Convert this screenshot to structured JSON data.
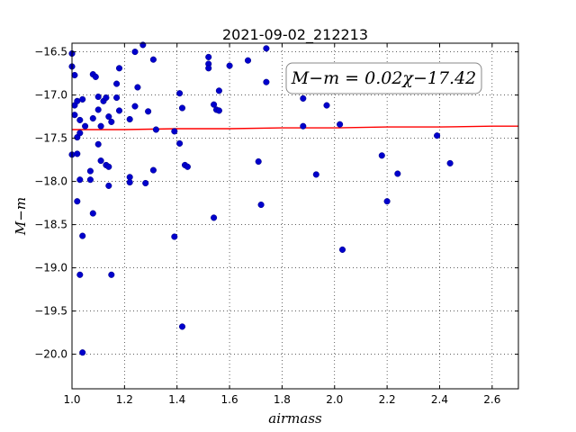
{
  "chart_data": {
    "type": "scatter",
    "title": "2021-09-02_212213",
    "xlabel": "airmass",
    "ylabel": "M−m",
    "xlim": [
      1.0,
      2.7
    ],
    "ylim": [
      -20.4,
      -16.4
    ],
    "y_inverted": true,
    "grid": true,
    "xticks": [
      1.0,
      1.2,
      1.4,
      1.6,
      1.8,
      2.0,
      2.2,
      2.4,
      2.6
    ],
    "xtick_labels": [
      "1.0",
      "1.2",
      "1.4",
      "1.6",
      "1.8",
      "2.0",
      "2.2",
      "2.4",
      "2.6"
    ],
    "yticks": [
      -16.5,
      -17.0,
      -17.5,
      -18.0,
      -18.5,
      -19.0,
      -19.5,
      -20.0
    ],
    "ytick_labels": [
      "−16.5",
      "−17.0",
      "−17.5",
      "−18.0",
      "−18.5",
      "−19.0",
      "−19.5",
      "−20.0"
    ],
    "annotation": "M−m = 0.02χ−17.42",
    "series": [
      {
        "kind": "points",
        "color": "#0000cc",
        "points": [
          [
            1.0,
            -16.52
          ],
          [
            1.0,
            -16.67
          ],
          [
            1.01,
            -16.77
          ],
          [
            1.01,
            -17.12
          ],
          [
            1.01,
            -17.23
          ],
          [
            1.0,
            -17.69
          ],
          [
            1.02,
            -17.68
          ],
          [
            1.02,
            -17.49
          ],
          [
            1.03,
            -17.44
          ],
          [
            1.02,
            -17.07
          ],
          [
            1.04,
            -17.05
          ],
          [
            1.03,
            -17.29
          ],
          [
            1.05,
            -17.36
          ],
          [
            1.02,
            -18.23
          ],
          [
            1.03,
            -17.98
          ],
          [
            1.04,
            -18.63
          ],
          [
            1.03,
            -19.08
          ],
          [
            1.04,
            -19.98
          ],
          [
            1.07,
            -17.88
          ],
          [
            1.07,
            -17.98
          ],
          [
            1.08,
            -18.37
          ],
          [
            1.08,
            -17.27
          ],
          [
            1.08,
            -16.76
          ],
          [
            1.09,
            -16.79
          ],
          [
            1.1,
            -17.02
          ],
          [
            1.1,
            -17.17
          ],
          [
            1.1,
            -17.57
          ],
          [
            1.11,
            -17.76
          ],
          [
            1.11,
            -17.36
          ],
          [
            1.12,
            -17.07
          ],
          [
            1.13,
            -17.03
          ],
          [
            1.13,
            -17.81
          ],
          [
            1.14,
            -17.25
          ],
          [
            1.14,
            -17.83
          ],
          [
            1.14,
            -18.05
          ],
          [
            1.15,
            -17.31
          ],
          [
            1.15,
            -19.08
          ],
          [
            1.17,
            -16.87
          ],
          [
            1.17,
            -17.03
          ],
          [
            1.18,
            -17.18
          ],
          [
            1.18,
            -16.69
          ],
          [
            1.22,
            -17.28
          ],
          [
            1.22,
            -17.95
          ],
          [
            1.22,
            -18.01
          ],
          [
            1.24,
            -17.13
          ],
          [
            1.24,
            -16.5
          ],
          [
            1.25,
            -16.91
          ],
          [
            1.27,
            -16.42
          ],
          [
            1.28,
            -18.02
          ],
          [
            1.29,
            -17.19
          ],
          [
            1.31,
            -17.87
          ],
          [
            1.31,
            -16.59
          ],
          [
            1.32,
            -17.4
          ],
          [
            1.39,
            -18.64
          ],
          [
            1.39,
            -17.42
          ],
          [
            1.41,
            -16.98
          ],
          [
            1.41,
            -17.56
          ],
          [
            1.42,
            -17.15
          ],
          [
            1.42,
            -19.68
          ],
          [
            1.43,
            -17.81
          ],
          [
            1.44,
            -17.83
          ],
          [
            1.52,
            -16.56
          ],
          [
            1.52,
            -16.64
          ],
          [
            1.52,
            -16.69
          ],
          [
            1.54,
            -17.11
          ],
          [
            1.54,
            -18.42
          ],
          [
            1.55,
            -17.17
          ],
          [
            1.56,
            -17.18
          ],
          [
            1.56,
            -16.95
          ],
          [
            1.6,
            -16.66
          ],
          [
            1.67,
            -16.6
          ],
          [
            1.71,
            -17.77
          ],
          [
            1.72,
            -18.27
          ],
          [
            1.74,
            -16.46
          ],
          [
            1.74,
            -16.85
          ],
          [
            1.88,
            -17.04
          ],
          [
            1.88,
            -17.36
          ],
          [
            1.93,
            -17.92
          ],
          [
            1.97,
            -17.12
          ],
          [
            2.02,
            -17.34
          ],
          [
            2.03,
            -18.79
          ],
          [
            2.18,
            -17.7
          ],
          [
            2.2,
            -18.23
          ],
          [
            2.24,
            -17.91
          ],
          [
            2.39,
            -17.47
          ],
          [
            2.44,
            -17.79
          ]
        ]
      },
      {
        "kind": "fit-line",
        "color": "#ff0000",
        "points": [
          [
            1.0,
            -17.4
          ],
          [
            1.2,
            -17.4
          ],
          [
            1.4,
            -17.39
          ],
          [
            1.6,
            -17.39
          ],
          [
            1.8,
            -17.38
          ],
          [
            2.0,
            -17.38
          ],
          [
            2.2,
            -17.37
          ],
          [
            2.4,
            -17.37
          ],
          [
            2.6,
            -17.36
          ],
          [
            2.7,
            -17.36
          ]
        ]
      }
    ]
  }
}
